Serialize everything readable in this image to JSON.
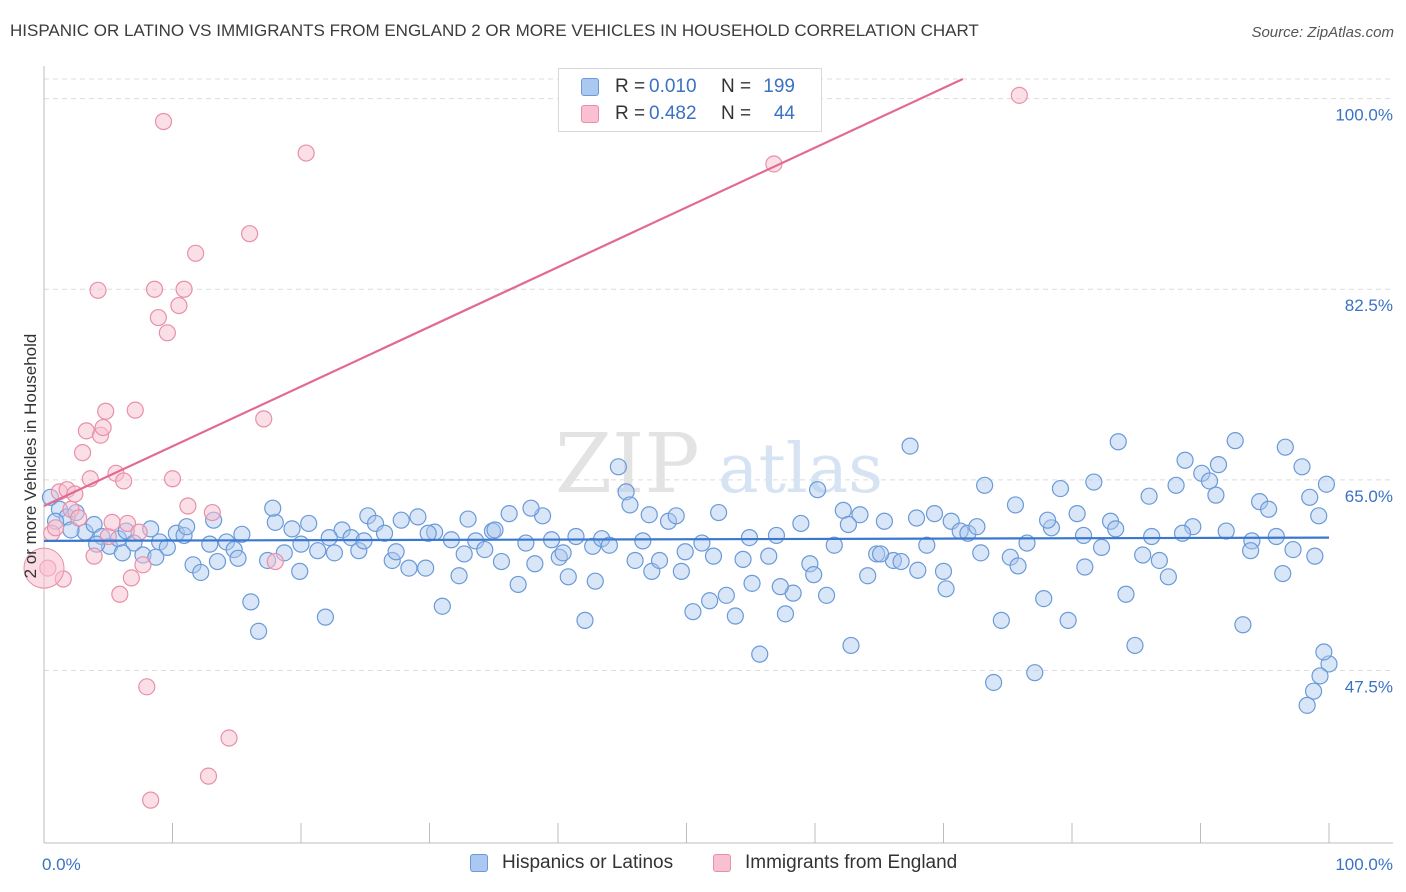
{
  "title": "HISPANIC OR LATINO VS IMMIGRANTS FROM ENGLAND 2 OR MORE VEHICLES IN HOUSEHOLD CORRELATION CHART",
  "source": "Source: ZipAtlas.com",
  "watermark": {
    "zip": "ZIP",
    "atlas": "atlas"
  },
  "legend": {
    "rows": [
      {
        "r_label": "R =",
        "r_value": "0.010",
        "n_label": "N =",
        "n_value": "199"
      },
      {
        "r_label": "R =",
        "r_value": "0.482",
        "n_label": "N =",
        "n_value": "44"
      }
    ]
  },
  "bottom_legend": {
    "series_a": "Hispanics or Latinos",
    "series_b": "Immigrants from England"
  },
  "colors": {
    "blue_fill": "#aac8f0",
    "blue_stroke": "#6a9ad8",
    "blue_line": "#3a78d0",
    "pink_fill": "#f8c0d0",
    "pink_stroke": "#e890a8",
    "pink_line": "#e26a92",
    "axis_text": "#3a72c4",
    "grid": "#dcdcdc"
  },
  "chart_data": {
    "type": "scatter",
    "title": "HISPANIC OR LATINO VS IMMIGRANTS FROM ENGLAND 2 OR MORE VEHICLES IN HOUSEHOLD CORRELATION CHART",
    "xlabel": "",
    "ylabel": "2 or more Vehicles in Household",
    "xlim": [
      0,
      100
    ],
    "ylim": [
      33.5,
      101.8
    ],
    "x_tick_labels": [
      "0.0%",
      "100.0%"
    ],
    "y_ticks": [
      47.5,
      65.0,
      82.5,
      100.0
    ],
    "y_tick_labels": [
      "47.5%",
      "65.0%",
      "82.5%",
      "100.0%"
    ],
    "grid": true,
    "legend_position": "top-center",
    "series": [
      {
        "name": "Hispanics or Latinos",
        "color": "#aac8f0",
        "r": 0.01,
        "n": 199,
        "trend": [
          [
            0,
            59.4
          ],
          [
            100,
            59.7
          ]
        ],
        "points": [
          [
            0.5,
            63.4
          ],
          [
            1.2,
            62.3
          ],
          [
            1.8,
            61.6
          ],
          [
            2.5,
            62.0
          ],
          [
            3.2,
            60.2
          ],
          [
            3.9,
            60.9
          ],
          [
            4.5,
            59.8
          ],
          [
            5.1,
            58.9
          ],
          [
            5.8,
            59.6
          ],
          [
            6.4,
            60.3
          ],
          [
            7.0,
            59.2
          ],
          [
            7.7,
            58.1
          ],
          [
            8.3,
            60.5
          ],
          [
            9.0,
            59.3
          ],
          [
            9.6,
            58.8
          ],
          [
            10.3,
            60.1
          ],
          [
            10.9,
            59.9
          ],
          [
            11.6,
            57.2
          ],
          [
            12.2,
            56.5
          ],
          [
            12.9,
            59.1
          ],
          [
            13.5,
            57.5
          ],
          [
            14.2,
            59.3
          ],
          [
            14.8,
            58.6
          ],
          [
            15.4,
            60.0
          ],
          [
            16.1,
            53.8
          ],
          [
            16.7,
            51.1
          ],
          [
            17.4,
            57.6
          ],
          [
            18.0,
            61.1
          ],
          [
            18.7,
            58.3
          ],
          [
            19.3,
            60.5
          ],
          [
            20.0,
            59.1
          ],
          [
            20.6,
            61.0
          ],
          [
            21.3,
            58.5
          ],
          [
            21.9,
            52.4
          ],
          [
            22.6,
            58.3
          ],
          [
            23.2,
            60.4
          ],
          [
            23.9,
            59.7
          ],
          [
            24.5,
            58.5
          ],
          [
            25.2,
            61.7
          ],
          [
            25.8,
            61.0
          ],
          [
            26.5,
            60.1
          ],
          [
            27.1,
            57.6
          ],
          [
            27.8,
            61.3
          ],
          [
            28.4,
            56.9
          ],
          [
            29.1,
            61.6
          ],
          [
            29.7,
            56.9
          ],
          [
            30.4,
            60.2
          ],
          [
            31.0,
            53.4
          ],
          [
            31.7,
            59.5
          ],
          [
            32.3,
            56.2
          ],
          [
            33.0,
            61.4
          ],
          [
            33.6,
            59.4
          ],
          [
            34.3,
            58.6
          ],
          [
            34.9,
            60.3
          ],
          [
            35.6,
            57.5
          ],
          [
            36.2,
            61.9
          ],
          [
            36.9,
            55.4
          ],
          [
            37.5,
            59.2
          ],
          [
            38.2,
            57.3
          ],
          [
            38.8,
            61.7
          ],
          [
            39.5,
            59.5
          ],
          [
            40.1,
            57.9
          ],
          [
            40.8,
            56.1
          ],
          [
            41.4,
            59.8
          ],
          [
            42.1,
            52.1
          ],
          [
            42.7,
            58.9
          ],
          [
            43.4,
            59.6
          ],
          [
            44.0,
            59.0
          ],
          [
            44.7,
            66.2
          ],
          [
            45.3,
            63.9
          ],
          [
            46.0,
            57.6
          ],
          [
            46.6,
            59.4
          ],
          [
            47.3,
            56.6
          ],
          [
            47.9,
            57.6
          ],
          [
            48.6,
            61.2
          ],
          [
            49.2,
            61.7
          ],
          [
            49.9,
            58.4
          ],
          [
            50.5,
            52.9
          ],
          [
            51.2,
            59.2
          ],
          [
            51.8,
            53.9
          ],
          [
            52.5,
            62.0
          ],
          [
            53.1,
            54.4
          ],
          [
            53.8,
            52.5
          ],
          [
            54.4,
            57.7
          ],
          [
            55.1,
            55.5
          ],
          [
            55.7,
            49.0
          ],
          [
            56.4,
            58.0
          ],
          [
            57.0,
            59.9
          ],
          [
            57.7,
            52.7
          ],
          [
            58.3,
            54.6
          ],
          [
            58.9,
            61.0
          ],
          [
            59.6,
            57.3
          ],
          [
            60.2,
            64.1
          ],
          [
            60.9,
            54.4
          ],
          [
            61.5,
            59.0
          ],
          [
            62.2,
            62.2
          ],
          [
            62.8,
            49.8
          ],
          [
            63.5,
            61.8
          ],
          [
            64.1,
            56.2
          ],
          [
            64.8,
            58.2
          ],
          [
            65.4,
            61.2
          ],
          [
            66.1,
            57.6
          ],
          [
            66.7,
            57.5
          ],
          [
            67.4,
            68.1
          ],
          [
            68.0,
            56.7
          ],
          [
            68.7,
            59.0
          ],
          [
            69.3,
            61.9
          ],
          [
            70.0,
            56.6
          ],
          [
            70.6,
            61.2
          ],
          [
            71.3,
            60.3
          ],
          [
            71.9,
            60.1
          ],
          [
            72.6,
            60.7
          ],
          [
            73.2,
            64.5
          ],
          [
            73.9,
            46.4
          ],
          [
            74.5,
            52.1
          ],
          [
            75.2,
            57.9
          ],
          [
            75.8,
            57.1
          ],
          [
            76.5,
            59.2
          ],
          [
            77.1,
            47.3
          ],
          [
            77.8,
            54.1
          ],
          [
            78.4,
            60.6
          ],
          [
            79.1,
            64.2
          ],
          [
            79.7,
            52.1
          ],
          [
            80.4,
            61.9
          ],
          [
            81.0,
            57.0
          ],
          [
            81.7,
            64.8
          ],
          [
            82.3,
            58.8
          ],
          [
            83.0,
            61.2
          ],
          [
            83.6,
            68.5
          ],
          [
            84.2,
            54.5
          ],
          [
            84.9,
            49.8
          ],
          [
            85.5,
            58.1
          ],
          [
            86.2,
            59.8
          ],
          [
            86.8,
            57.6
          ],
          [
            87.5,
            56.1
          ],
          [
            88.1,
            64.5
          ],
          [
            88.8,
            66.8
          ],
          [
            89.4,
            60.7
          ],
          [
            90.1,
            65.6
          ],
          [
            90.7,
            64.9
          ],
          [
            91.4,
            66.4
          ],
          [
            92.0,
            60.3
          ],
          [
            92.7,
            68.6
          ],
          [
            93.3,
            51.7
          ],
          [
            94.0,
            59.4
          ],
          [
            94.6,
            63.0
          ],
          [
            95.3,
            62.3
          ],
          [
            95.9,
            59.8
          ],
          [
            96.6,
            68.0
          ],
          [
            97.2,
            58.6
          ],
          [
            97.9,
            66.2
          ],
          [
            98.5,
            63.4
          ],
          [
            99.2,
            61.7
          ],
          [
            99.8,
            64.6
          ],
          [
            0.9,
            61.2
          ],
          [
            2.1,
            60.4
          ],
          [
            4.1,
            59.1
          ],
          [
            6.1,
            58.3
          ],
          [
            8.7,
            57.9
          ],
          [
            11.1,
            60.7
          ],
          [
            13.2,
            61.3
          ],
          [
            15.1,
            57.8
          ],
          [
            17.8,
            62.4
          ],
          [
            19.9,
            56.6
          ],
          [
            22.2,
            59.7
          ],
          [
            24.9,
            59.4
          ],
          [
            27.4,
            58.4
          ],
          [
            29.9,
            60.1
          ],
          [
            32.7,
            58.2
          ],
          [
            35.1,
            60.4
          ],
          [
            37.9,
            62.4
          ],
          [
            40.4,
            58.3
          ],
          [
            42.9,
            55.7
          ],
          [
            45.6,
            62.7
          ],
          [
            47.1,
            61.8
          ],
          [
            49.6,
            56.6
          ],
          [
            52.1,
            58.0
          ],
          [
            54.9,
            59.7
          ],
          [
            57.3,
            55.2
          ],
          [
            59.9,
            56.3
          ],
          [
            62.6,
            60.9
          ],
          [
            65.1,
            58.2
          ],
          [
            67.9,
            61.5
          ],
          [
            70.2,
            55.0
          ],
          [
            72.9,
            58.3
          ],
          [
            75.6,
            62.7
          ],
          [
            78.1,
            61.3
          ],
          [
            80.9,
            59.9
          ],
          [
            83.4,
            60.5
          ],
          [
            86.0,
            63.5
          ],
          [
            88.6,
            60.1
          ],
          [
            91.2,
            63.6
          ],
          [
            93.9,
            58.5
          ],
          [
            96.4,
            56.4
          ],
          [
            98.9,
            58.0
          ],
          [
            100.0,
            48.1
          ],
          [
            99.6,
            49.2
          ],
          [
            99.3,
            47.0
          ],
          [
            98.8,
            45.6
          ],
          [
            98.3,
            44.3
          ]
        ]
      },
      {
        "name": "Immigrants from England",
        "color": "#f8c0d0",
        "r": 0.482,
        "n": 44,
        "trend": [
          [
            0,
            62.6
          ],
          [
            71.5,
            101.8
          ]
        ],
        "points": [
          [
            0.3,
            56.9
          ],
          [
            0.6,
            60.1
          ],
          [
            0.9,
            60.6
          ],
          [
            1.2,
            63.9
          ],
          [
            1.5,
            55.9
          ],
          [
            1.8,
            64.1
          ],
          [
            2.1,
            62.3
          ],
          [
            2.4,
            63.7
          ],
          [
            2.7,
            61.5
          ],
          [
            3.0,
            67.5
          ],
          [
            3.3,
            69.5
          ],
          [
            3.6,
            65.1
          ],
          [
            3.9,
            58.0
          ],
          [
            4.2,
            82.4
          ],
          [
            4.4,
            69.1
          ],
          [
            4.6,
            69.8
          ],
          [
            4.8,
            71.3
          ],
          [
            5.0,
            59.8
          ],
          [
            5.3,
            61.1
          ],
          [
            5.6,
            65.6
          ],
          [
            5.9,
            54.5
          ],
          [
            6.2,
            64.9
          ],
          [
            6.5,
            61.0
          ],
          [
            6.8,
            56.0
          ],
          [
            7.1,
            71.4
          ],
          [
            7.4,
            60.2
          ],
          [
            7.7,
            57.2
          ],
          [
            8.0,
            46.0
          ],
          [
            8.3,
            35.6
          ],
          [
            8.6,
            82.5
          ],
          [
            8.9,
            79.9
          ],
          [
            9.3,
            97.9
          ],
          [
            9.6,
            78.5
          ],
          [
            10.0,
            65.1
          ],
          [
            10.5,
            81.0
          ],
          [
            10.9,
            82.5
          ],
          [
            11.2,
            62.6
          ],
          [
            11.8,
            85.8
          ],
          [
            12.8,
            37.8
          ],
          [
            13.1,
            62.0
          ],
          [
            14.4,
            41.3
          ],
          [
            16.0,
            87.6
          ],
          [
            17.1,
            70.6
          ],
          [
            18.0,
            57.5
          ]
        ],
        "extra_points": [
          [
            20.4,
            95.0
          ],
          [
            56.8,
            94.0
          ],
          [
            75.9,
            100.3
          ]
        ]
      }
    ]
  }
}
